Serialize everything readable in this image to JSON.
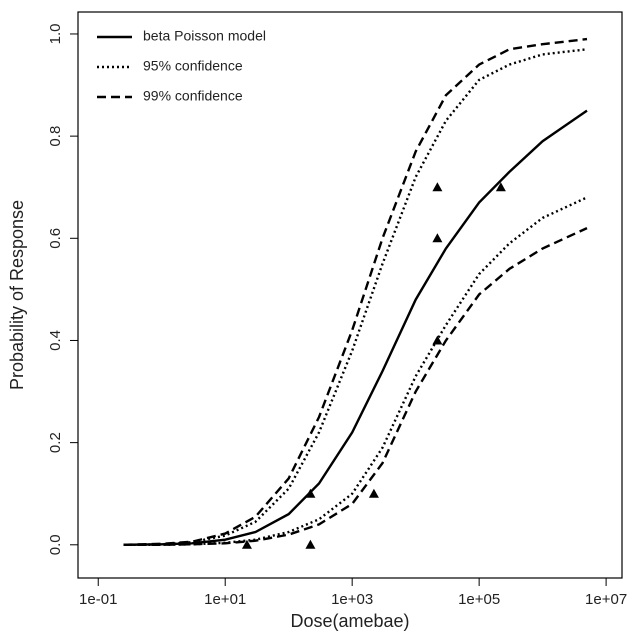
{
  "chart_data": {
    "type": "line",
    "x_label": "Dose(amebae)",
    "y_label": "Probability of Response",
    "log_x": true,
    "xlim": [
      0.048,
      17800000
    ],
    "xticks": [
      {
        "value": 0.1,
        "label": "1e-01"
      },
      {
        "value": 10,
        "label": "1e+01"
      },
      {
        "value": 1000,
        "label": "1e+03"
      },
      {
        "value": 100000,
        "label": "1e+05"
      },
      {
        "value": 10000000,
        "label": "1e+07"
      }
    ],
    "ylim": [
      -0.065,
      1.043
    ],
    "yticks": [
      {
        "value": 0,
        "label": "0.0"
      },
      0.2,
      0.4,
      0.6,
      0.8,
      {
        "value": 1,
        "label": "1.0"
      }
    ],
    "legend": "top-left",
    "x": [
      0.25,
      1,
      3,
      10,
      30,
      100,
      300,
      1000,
      3000,
      10000,
      30000,
      100000,
      300000,
      1000000,
      5000000
    ],
    "series": [
      {
        "name": "beta Poisson model",
        "color": "#000000",
        "style": "solid",
        "values": [
          0,
          0.001,
          0.003,
          0.01,
          0.025,
          0.06,
          0.12,
          0.22,
          0.34,
          0.48,
          0.58,
          0.67,
          0.73,
          0.79,
          0.85
        ]
      },
      {
        "name": "95% confidence",
        "color": "#000000",
        "style": "dotted",
        "values": [
          0,
          0.001,
          0.005,
          0.018,
          0.045,
          0.11,
          0.22,
          0.38,
          0.55,
          0.72,
          0.83,
          0.91,
          0.94,
          0.96,
          0.97
        ]
      },
      {
        "name": "99% confidence",
        "color": "#000000",
        "style": "dashed",
        "values": [
          0,
          0.002,
          0.006,
          0.022,
          0.055,
          0.13,
          0.25,
          0.42,
          0.6,
          0.77,
          0.88,
          0.94,
          0.97,
          0.98,
          0.99
        ]
      },
      {
        "color": "#000000",
        "style": "dotted",
        "values": [
          0,
          0,
          0.001,
          0.004,
          0.01,
          0.025,
          0.05,
          0.1,
          0.19,
          0.33,
          0.43,
          0.53,
          0.59,
          0.64,
          0.68
        ]
      },
      {
        "color": "#000000",
        "style": "dashed",
        "values": [
          0,
          0,
          0.001,
          0.003,
          0.008,
          0.02,
          0.04,
          0.08,
          0.16,
          0.3,
          0.4,
          0.49,
          0.54,
          0.58,
          0.62
        ]
      }
    ],
    "points": {
      "color": "#000000",
      "marker": "triangle",
      "x": [
        22,
        220,
        220,
        2200,
        22000,
        22000,
        22000,
        220000
      ],
      "y": [
        0,
        0.1,
        0,
        0.1,
        0.7,
        0.6,
        0.4,
        0.7
      ]
    }
  }
}
